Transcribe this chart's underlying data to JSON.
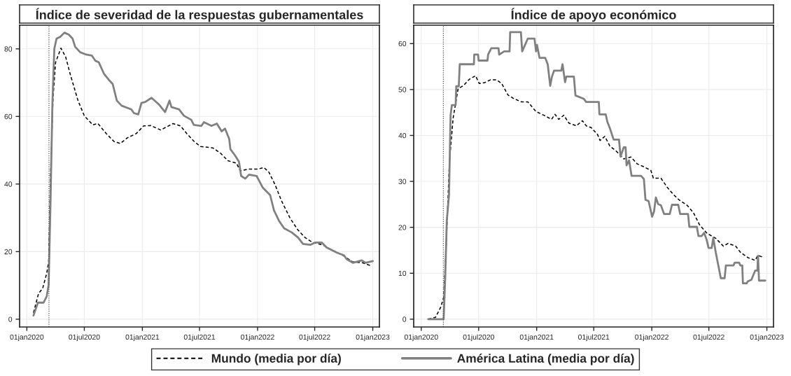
{
  "chart_data": [
    {
      "type": "line",
      "title": "Índice de severidad de la respuestas gubernamentales",
      "xlim": [
        "2019-12-09",
        "2023-01-22"
      ],
      "ylim": [
        -2.3,
        87
      ],
      "xticks": [
        {
          "value": "2020-01-01",
          "label": "01jan2020"
        },
        {
          "value": "2020-07-01",
          "label": "01jul2020"
        },
        {
          "value": "2021-01-01",
          "label": "01jan2021"
        },
        {
          "value": "2021-07-01",
          "label": "01jul2021"
        },
        {
          "value": "2022-01-01",
          "label": "01jan2022"
        },
        {
          "value": "2022-07-01",
          "label": "01jul2022"
        },
        {
          "value": "2023-01-01",
          "label": "01jan2023"
        }
      ],
      "yticks": [
        0,
        20,
        40,
        60,
        80
      ],
      "grid": true,
      "legend": "bottom",
      "ref_lines": [
        {
          "axis": "x",
          "value": "2020-03-11",
          "color": "#555555",
          "line_style": "dotted"
        }
      ],
      "series": [
        {
          "name": "Mundo (media por día)",
          "color": "#000000",
          "line_style": "dashed",
          "x": [
            "2020-01-22",
            "2020-02-07",
            "2020-02-20",
            "2020-03-04",
            "2020-03-10",
            "2020-03-16",
            "2020-03-24",
            "2020-04-01",
            "2020-04-18",
            "2020-05-03",
            "2020-05-18",
            "2020-05-30",
            "2020-06-11",
            "2020-07-01",
            "2020-07-28",
            "2020-08-13",
            "2020-09-09",
            "2020-10-03",
            "2020-10-23",
            "2020-11-15",
            "2020-12-12",
            "2021-01-05",
            "2021-01-28",
            "2021-02-28",
            "2021-04-08",
            "2021-05-02",
            "2021-05-22",
            "2021-06-14",
            "2021-07-04",
            "2021-08-12",
            "2021-09-05",
            "2021-09-29",
            "2021-10-26",
            "2021-11-07",
            "2021-12-01",
            "2022-01-01",
            "2022-01-21",
            "2022-02-06",
            "2022-02-26",
            "2022-03-17",
            "2022-04-14",
            "2022-05-08",
            "2022-05-31",
            "2022-06-24",
            "2022-07-26",
            "2022-08-26",
            "2022-09-28",
            "2022-10-29",
            "2022-11-30",
            "2022-12-24"
          ],
          "values": [
            1.9,
            7.6,
            9.1,
            13.6,
            17,
            42.8,
            65.5,
            76,
            80.2,
            77.6,
            72.3,
            68.5,
            64.7,
            60.2,
            57.5,
            57.9,
            54.9,
            52.6,
            52,
            53.7,
            54.9,
            57.2,
            57.3,
            56,
            57.9,
            57.2,
            54.9,
            52.6,
            51.1,
            50.7,
            49.2,
            46.9,
            46.2,
            43.9,
            44.4,
            44.4,
            44.9,
            43.5,
            39.7,
            35.2,
            29.9,
            26.5,
            24.2,
            22.7,
            22,
            20.4,
            18.9,
            17,
            16.7,
            15.9
          ]
        },
        {
          "name": "América Latina (media por día)",
          "color": "#808080",
          "line_style": "solid",
          "x": [
            "2020-01-22",
            "2020-02-05",
            "2020-02-23",
            "2020-03-04",
            "2020-03-10",
            "2020-03-16",
            "2020-03-22",
            "2020-03-28",
            "2020-04-04",
            "2020-04-16",
            "2020-04-29",
            "2020-05-13",
            "2020-05-25",
            "2020-06-02",
            "2020-06-18",
            "2020-07-07",
            "2020-07-25",
            "2020-08-05",
            "2020-08-16",
            "2020-09-01",
            "2020-09-17",
            "2020-09-29",
            "2020-10-12",
            "2020-10-27",
            "2020-11-27",
            "2020-12-05",
            "2020-12-19",
            "2020-12-29",
            "2021-01-10",
            "2021-01-30",
            "2021-02-22",
            "2021-03-14",
            "2021-03-28",
            "2021-04-03",
            "2021-04-27",
            "2021-05-13",
            "2021-06-05",
            "2021-06-13",
            "2021-07-07",
            "2021-07-15",
            "2021-08-08",
            "2021-08-25",
            "2021-09-09",
            "2021-09-20",
            "2021-10-03",
            "2021-10-07",
            "2021-10-22",
            "2021-11-03",
            "2021-11-10",
            "2021-11-23",
            "2021-12-05",
            "2021-12-29",
            "2022-01-17",
            "2022-02-10",
            "2022-02-22",
            "2022-03-10",
            "2022-03-26",
            "2022-04-19",
            "2022-05-09",
            "2022-05-25",
            "2022-06-17",
            "2022-07-03",
            "2022-07-23",
            "2022-08-08",
            "2022-09-09",
            "2022-10-02",
            "2022-10-10",
            "2022-10-30",
            "2022-11-27",
            "2022-12-09",
            "2023-01-01"
          ],
          "values": [
            1.1,
            4.9,
            4.9,
            6.8,
            10.2,
            35,
            64,
            80,
            83,
            83.6,
            84.8,
            84.2,
            83,
            80.6,
            79,
            78.3,
            78,
            76.5,
            76,
            72.7,
            70.8,
            69.6,
            64.7,
            63.2,
            62.1,
            61,
            60.6,
            64,
            64.3,
            65.5,
            63.6,
            61.3,
            64.7,
            62.8,
            62.1,
            60.2,
            59,
            57.5,
            57.2,
            58.3,
            57.2,
            57.9,
            55.6,
            56.4,
            53.4,
            50.3,
            48.4,
            46.6,
            42.4,
            41.6,
            42.8,
            42.4,
            39,
            36.7,
            32.2,
            29.1,
            26.9,
            25.7,
            24.2,
            22.3,
            22,
            22.7,
            22.7,
            21.2,
            19.7,
            18.9,
            17.8,
            16.7,
            17.4,
            16.7,
            17.2
          ]
        }
      ]
    },
    {
      "type": "line",
      "title": "Índice de apoyo económico",
      "xlim": [
        "2019-12-08",
        "2023-01-22"
      ],
      "ylim": [
        -1.7,
        64
      ],
      "xticks": [
        {
          "value": "2020-01-01",
          "label": "01jan2020"
        },
        {
          "value": "2020-07-01",
          "label": "01jul2020"
        },
        {
          "value": "2021-01-01",
          "label": "01jan2021"
        },
        {
          "value": "2021-07-01",
          "label": "01jul2021"
        },
        {
          "value": "2022-01-01",
          "label": "01jan2022"
        },
        {
          "value": "2022-07-01",
          "label": "01jul2022"
        },
        {
          "value": "2023-01-01",
          "label": "01jan2023"
        }
      ],
      "yticks": [
        0,
        10,
        20,
        30,
        40,
        50,
        60
      ],
      "grid": true,
      "ref_lines": [
        {
          "axis": "x",
          "value": "2020-03-11",
          "color": "#555555",
          "line_style": "dotted"
        }
      ],
      "series": [
        {
          "color": "#000000",
          "line_style": "dashed",
          "x": [
            "2020-01-23",
            "2020-02-15",
            "2020-03-02",
            "2020-03-12",
            "2020-03-21",
            "2020-03-30",
            "2020-04-11",
            "2020-04-27",
            "2020-05-13",
            "2020-06-01",
            "2020-06-21",
            "2020-07-03",
            "2020-07-20",
            "2020-08-07",
            "2020-08-27",
            "2020-09-12",
            "2020-10-02",
            "2020-10-21",
            "2020-11-14",
            "2020-12-04",
            "2020-12-30",
            "2021-01-24",
            "2021-02-17",
            "2021-02-28",
            "2021-03-12",
            "2021-03-28",
            "2021-04-13",
            "2021-05-07",
            "2021-05-26",
            "2021-06-07",
            "2021-06-23",
            "2021-07-13",
            "2021-07-21",
            "2021-08-05",
            "2021-08-21",
            "2021-09-10",
            "2021-10-04",
            "2021-10-27",
            "2021-11-16",
            "2021-12-06",
            "2021-12-29",
            "2022-01-06",
            "2022-01-30",
            "2022-02-19",
            "2022-03-11",
            "2022-03-30",
            "2022-04-23",
            "2022-05-13",
            "2022-06-01",
            "2022-06-25",
            "2022-07-23",
            "2022-08-16",
            "2022-08-31",
            "2022-09-24",
            "2022-10-10",
            "2022-11-02",
            "2022-11-25",
            "2022-12-03",
            "2022-12-23"
          ],
          "values": [
            0,
            0.4,
            2.5,
            4.7,
            17.6,
            33.8,
            43.8,
            50.2,
            50.8,
            52.2,
            53,
            51.3,
            51.5,
            52.1,
            52.1,
            51.3,
            48.8,
            48,
            47.3,
            47.3,
            45.2,
            44.4,
            43.5,
            44.6,
            43.5,
            44.4,
            42.7,
            42.1,
            43.2,
            42.1,
            41.7,
            40.2,
            38.9,
            39.8,
            37.7,
            36.6,
            34.9,
            35.3,
            33.8,
            33.2,
            32.4,
            30.7,
            30.7,
            28.7,
            27.1,
            25.9,
            24.8,
            23.2,
            20.6,
            18.7,
            17.6,
            15.9,
            16.5,
            15.9,
            14.5,
            13.4,
            12.8,
            13.9,
            13.4
          ]
        },
        {
          "color": "#808080",
          "line_style": "solid",
          "x": [
            "2020-01-23",
            "2020-03-12",
            "2020-03-17",
            "2020-03-22",
            "2020-03-29",
            "2020-04-03",
            "2020-04-07",
            "2020-04-19",
            "2020-04-21",
            "2020-04-29",
            "2020-05-02",
            "2020-06-16",
            "2020-06-17",
            "2020-06-29",
            "2020-07-01",
            "2020-07-29",
            "2020-07-31",
            "2020-08-10",
            "2020-09-02",
            "2020-09-04",
            "2020-09-20",
            "2020-10-07",
            "2020-10-09",
            "2020-11-12",
            "2020-11-16",
            "2020-12-04",
            "2020-12-25",
            "2020-12-30",
            "2021-01-02",
            "2021-01-10",
            "2021-01-28",
            "2021-02-05",
            "2021-02-13",
            "2021-02-18",
            "2021-02-25",
            "2021-03-20",
            "2021-03-24",
            "2021-04-01",
            "2021-04-05",
            "2021-04-29",
            "2021-05-04",
            "2021-05-30",
            "2021-06-07",
            "2021-07-17",
            "2021-07-19",
            "2021-08-08",
            "2021-08-13",
            "2021-08-21",
            "2021-09-02",
            "2021-09-19",
            "2021-09-24",
            "2021-10-04",
            "2021-10-10",
            "2021-10-13",
            "2021-10-21",
            "2021-10-29",
            "2021-11-28",
            "2021-12-07",
            "2021-12-12",
            "2021-12-22",
            "2022-01-02",
            "2022-01-08",
            "2022-01-14",
            "2022-01-21",
            "2022-01-30",
            "2022-02-09",
            "2022-02-27",
            "2022-03-06",
            "2022-03-26",
            "2022-04-01",
            "2022-04-26",
            "2022-04-30",
            "2022-05-24",
            "2022-05-29",
            "2022-06-08",
            "2022-06-16",
            "2022-06-24",
            "2022-06-30",
            "2022-07-10",
            "2022-07-15",
            "2022-07-23",
            "2022-07-31",
            "2022-08-08",
            "2022-08-20",
            "2022-08-24",
            "2022-09-17",
            "2022-09-21",
            "2022-10-05",
            "2022-10-09",
            "2022-10-15",
            "2022-10-17",
            "2022-10-29",
            "2022-11-01",
            "2022-11-13",
            "2022-11-25",
            "2022-12-02",
            "2022-12-04",
            "2022-12-07",
            "2022-12-27"
          ],
          "values": [
            0,
            0,
            9.2,
            21.5,
            27.1,
            44.4,
            46.6,
            46.6,
            50.7,
            50.7,
            55.5,
            55.5,
            57.6,
            57.6,
            56.3,
            56.3,
            57.6,
            59,
            59,
            57.6,
            58.3,
            58.3,
            62.5,
            62.5,
            58.3,
            61.1,
            61.1,
            58.3,
            59.7,
            56.9,
            56.9,
            55.5,
            50.8,
            52.7,
            54.1,
            54.1,
            55.5,
            51.6,
            52.8,
            52.8,
            48.7,
            48,
            47.3,
            47.3,
            44.6,
            44.6,
            43,
            41.6,
            39.1,
            39.1,
            35.4,
            37.4,
            37.4,
            33.5,
            34.6,
            31.2,
            31.2,
            30.5,
            26,
            25.7,
            22.3,
            23.4,
            26.5,
            25.1,
            24.8,
            22.9,
            22.9,
            24.9,
            24.9,
            22.9,
            22.9,
            20.1,
            20.1,
            18.1,
            18.1,
            18.8,
            17.3,
            15.5,
            15.5,
            17.7,
            14.5,
            11.7,
            8.9,
            8.9,
            11.7,
            11.7,
            12.3,
            12.3,
            11.7,
            11.7,
            7.8,
            7.8,
            8.2,
            8.6,
            10.6,
            10.6,
            13.8,
            8.4,
            8.4
          ]
        }
      ]
    }
  ]
}
